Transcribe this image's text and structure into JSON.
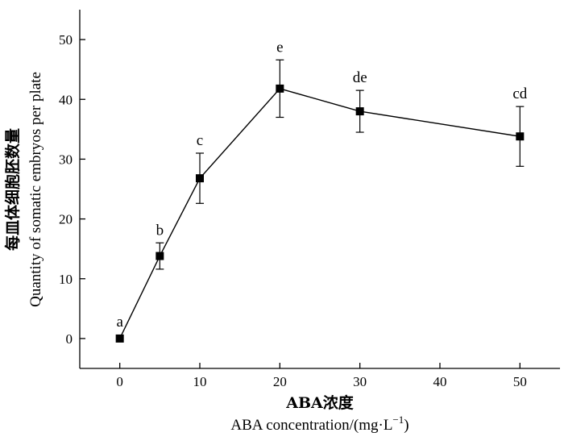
{
  "chart_data": {
    "type": "line",
    "x": [
      0,
      5,
      10,
      20,
      30,
      50
    ],
    "series": [
      {
        "values": [
          0,
          13.8,
          26.8,
          41.8,
          38.0,
          33.8
        ],
        "error": [
          0,
          2.2,
          4.2,
          4.8,
          3.5,
          5.0
        ],
        "labels": [
          "a",
          "b",
          "c",
          "e",
          "de",
          "cd"
        ]
      }
    ],
    "xlabel_cn": "ABA浓度",
    "xlabel_en": "ABA concentration/(mg·L",
    "xlabel_en_sup": "−1",
    "xlabel_en_close": ")",
    "ylabel_cn": "每皿体细胞胚数量",
    "ylabel_en": "Quantity of somatic embryos per plate",
    "xlim": [
      -5,
      55
    ],
    "ylim": [
      -5,
      55
    ],
    "xticks": [
      0,
      10,
      20,
      30,
      40,
      50
    ],
    "yticks": [
      0,
      10,
      20,
      30,
      40,
      50
    ],
    "grid": false,
    "marker": "square",
    "colors": {
      "line": "#000000",
      "marker": "#000000"
    }
  }
}
